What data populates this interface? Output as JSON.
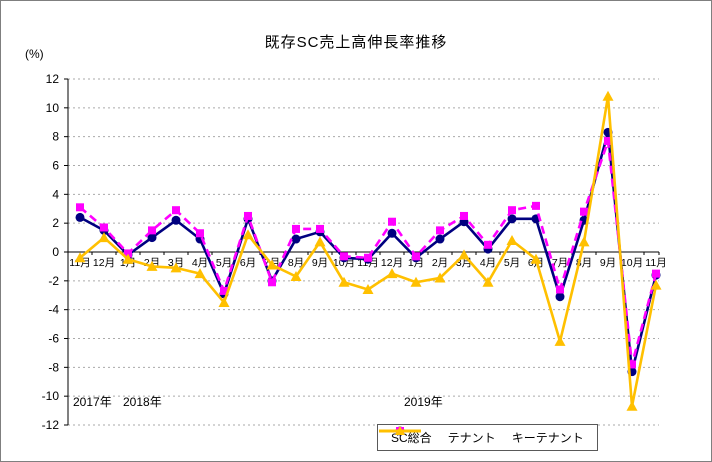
{
  "chart_data": {
    "type": "line",
    "title": "既存SC売上高伸長率推移",
    "y_unit_label": "(%)",
    "ylim": [
      -12,
      12
    ],
    "ytick_step": 2,
    "grid": true,
    "legend_position": "bottom-right",
    "categories": [
      "11月",
      "12月",
      "1月",
      "2月",
      "3月",
      "4月",
      "5月",
      "6月",
      "7月",
      "8月",
      "9月",
      "10月",
      "11月",
      "12月",
      "1月",
      "2月",
      "3月",
      "4月",
      "5月",
      "6月",
      "7月",
      "8月",
      "9月",
      "10月",
      "11月"
    ],
    "year_labels": [
      {
        "label": "2017年"
      },
      {
        "label": "2018年"
      },
      {
        "label": "2019年"
      }
    ],
    "series": [
      {
        "name": "SC総合",
        "color": "#000080",
        "marker": "circle",
        "line_style": "solid",
        "values": [
          2.4,
          1.5,
          -0.2,
          1.0,
          2.2,
          0.9,
          -2.9,
          2.3,
          -2.0,
          0.9,
          1.4,
          -0.4,
          -0.5,
          1.3,
          -0.4,
          0.9,
          2.1,
          0.2,
          2.3,
          2.3,
          -3.1,
          2.2,
          8.3,
          -8.3,
          -1.6
        ]
      },
      {
        "name": "テナント",
        "color": "#FF00FF",
        "marker": "square",
        "line_style": "dashed",
        "values": [
          3.1,
          1.7,
          -0.1,
          1.5,
          2.9,
          1.3,
          -2.7,
          2.5,
          -2.1,
          1.6,
          1.6,
          -0.3,
          -0.4,
          2.1,
          -0.3,
          1.5,
          2.5,
          0.5,
          2.9,
          3.2,
          -2.6,
          2.8,
          7.7,
          -7.8,
          -1.5
        ]
      },
      {
        "name": "キーテナント",
        "color": "#FFC000",
        "marker": "triangle",
        "line_style": "solid",
        "values": [
          -0.4,
          1.0,
          -0.5,
          -1.0,
          -1.1,
          -1.5,
          -3.5,
          1.2,
          -0.9,
          -1.7,
          0.7,
          -2.1,
          -2.6,
          -1.5,
          -2.1,
          -1.8,
          -0.2,
          -2.1,
          0.8,
          -0.5,
          -6.2,
          0.7,
          10.8,
          -10.7,
          -2.3
        ]
      }
    ],
    "axis_color": "#000000",
    "gridline_color": "#aaaaaa"
  }
}
